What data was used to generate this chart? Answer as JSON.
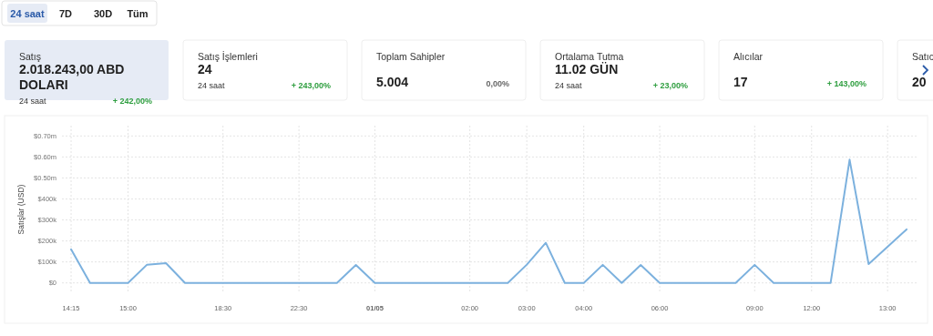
{
  "chart_data": [
    {
      "type": "other",
      "annotations": [
        "24 saat",
        "7D",
        "30D",
        "Tüm"
      ]
    },
    {
      "type": "other",
      "title": "Satış",
      "subtitle": "2.018.243,00 ABD DOLARI",
      "annotations": [
        "24 saat",
        "+ 242,00%"
      ],
      "colors": [
        "#333333",
        "#2e9e3f"
      ]
    },
    {
      "type": "other",
      "title": "Satış İşlemleri",
      "subtitle": "24",
      "annotations": [
        "24 saat",
        "+ 243,00%"
      ],
      "colors": [
        "#333333",
        "#2e9e3f"
      ]
    },
    {
      "type": "other",
      "title": "Toplam Sahipler",
      "subtitle": "5.004",
      "annotations": [
        "0,00%"
      ],
      "colors": [
        "#666666"
      ]
    },
    {
      "type": "other",
      "title": "Ortalama Tutma",
      "subtitle": "11.02 GÜN",
      "annotations": [
        "24 saat",
        "+ 23,00%"
      ],
      "colors": [
        "#333333",
        "#2e9e3f"
      ]
    },
    {
      "type": "other",
      "title": "Alıcılar",
      "subtitle": "17",
      "annotations": [
        "+ 143,00%"
      ],
      "colors": [
        "#2e9e3f"
      ]
    },
    {
      "type": "other",
      "title": "Satıc",
      "subtitle": "20"
    },
    {
      "type": "line",
      "ylabel": "Satışlar (USD)",
      "categories": [
        "14:15",
        null,
        null,
        "15:00",
        null,
        null,
        null,
        null,
        "18:30",
        null,
        null,
        null,
        "22:30",
        null,
        null,
        null,
        "01/05",
        null,
        null,
        null,
        null,
        "02:00",
        null,
        null,
        "03:00",
        null,
        null,
        "04:00",
        null,
        null,
        null,
        "06:00",
        null,
        null,
        null,
        null,
        "09:00",
        null,
        null,
        "12:00",
        null,
        null,
        null,
        "13:00",
        null
      ],
      "series": [
        {
          "color": "#7cb1de",
          "values": [
            160000,
            0,
            0,
            0,
            87000,
            94000,
            0,
            0,
            0,
            0,
            0,
            0,
            0,
            0,
            0,
            85000,
            0,
            0,
            0,
            0,
            0,
            0,
            0,
            0,
            87000,
            191000,
            0,
            0,
            86000,
            0,
            85000,
            0,
            0,
            0,
            0,
            0,
            86000,
            0,
            0,
            0,
            0,
            587000,
            90000,
            172000,
            255000
          ]
        }
      ],
      "ylim": [
        0,
        700000
      ],
      "yticks": [
        {
          "value": 0,
          "label": "$0"
        },
        {
          "value": 100000,
          "label": "$100k"
        },
        {
          "value": 200000,
          "label": "$200k"
        },
        {
          "value": 300000,
          "label": "$300k"
        },
        {
          "value": 400000,
          "label": "$400k"
        },
        {
          "value": 500000,
          "label": "$0.50m"
        },
        {
          "value": 600000,
          "label": "$0.60m"
        },
        {
          "value": 700000,
          "label": "$0.70m"
        }
      ],
      "grid": true,
      "marker": "none"
    }
  ]
}
